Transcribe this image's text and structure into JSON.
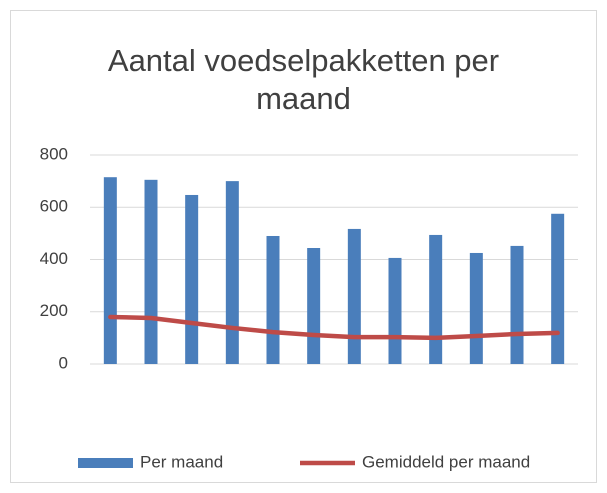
{
  "chart_data": {
    "type": "bar",
    "title": "Aantal voedselpakketten per maand",
    "categories": [
      null,
      null,
      null,
      null,
      null,
      null,
      null,
      null,
      null,
      null,
      null,
      null
    ],
    "series": [
      {
        "name": "Per maand",
        "type": "bar",
        "color": "#4a7ebb",
        "values": [
          715,
          705,
          647,
          700,
          490,
          444,
          517,
          406,
          494,
          425,
          452,
          575
        ]
      },
      {
        "name": "Gemiddeld per maand",
        "type": "line",
        "color": "#be4b48",
        "values": [
          180,
          176,
          157,
          138,
          122,
          111,
          103,
          103,
          100,
          107,
          115,
          119
        ]
      }
    ],
    "ylim": [
      0,
      800
    ],
    "yticks": [
      0,
      200,
      400,
      600,
      800
    ],
    "grid": true,
    "legend": "bottom"
  }
}
